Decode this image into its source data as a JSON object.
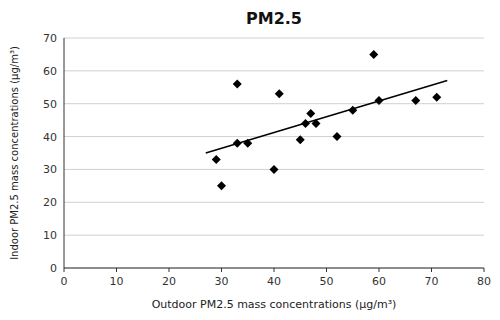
{
  "chart_data": {
    "type": "scatter",
    "title": "PM2.5",
    "xlabel": "Outdoor PM2.5 mass concentrations (μg/m³)",
    "ylabel": "Indoor PM2.5 mass concentrations (μg/m³)",
    "series": [
      {
        "type": "scatter",
        "color": "black",
        "marker": "diamond",
        "x": [
          29,
          30,
          33,
          33,
          35,
          40,
          41,
          45,
          46,
          47,
          48,
          52,
          55,
          59,
          60,
          67,
          71
        ],
        "values": [
          33,
          25,
          38,
          56,
          38,
          30,
          53,
          39,
          44,
          47,
          44,
          40,
          48,
          65,
          51,
          51,
          52
        ]
      },
      {
        "type": "line",
        "color": "black",
        "x": [
          27,
          73
        ],
        "values": [
          34.99383,
          57.03848
        ]
      }
    ],
    "xlim": [
      0,
      80
    ],
    "ylim": [
      0,
      70
    ],
    "xticks": [
      0,
      10,
      20,
      30,
      40,
      50,
      60,
      70,
      80
    ],
    "yticks": [
      0,
      10,
      20,
      30,
      40,
      50,
      60,
      70
    ],
    "grid": true
  }
}
